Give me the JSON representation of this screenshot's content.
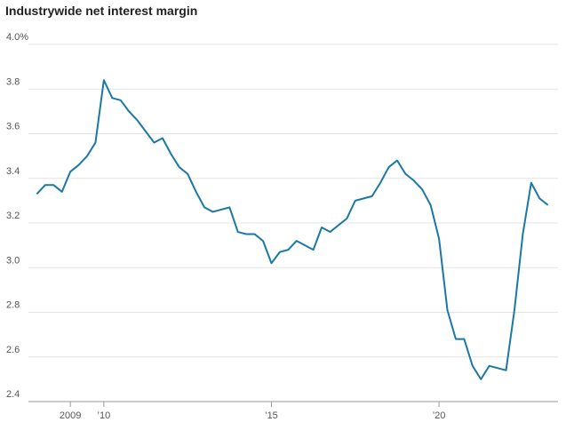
{
  "chart_data": {
    "type": "line",
    "title": "Industrywide net interest margin",
    "x": [
      2008,
      2008.25,
      2008.5,
      2008.75,
      2009,
      2009.25,
      2009.5,
      2009.75,
      2010,
      2010.25,
      2010.5,
      2010.75,
      2011,
      2011.25,
      2011.5,
      2011.75,
      2012,
      2012.25,
      2012.5,
      2012.75,
      2013,
      2013.25,
      2013.5,
      2013.75,
      2014,
      2014.25,
      2014.5,
      2014.75,
      2015,
      2015.25,
      2015.5,
      2015.75,
      2016,
      2016.25,
      2016.5,
      2016.75,
      2017,
      2017.25,
      2017.5,
      2017.75,
      2018,
      2018.25,
      2018.5,
      2018.75,
      2019,
      2019.25,
      2019.5,
      2019.75,
      2020,
      2020.25,
      2020.5,
      2020.75,
      2021,
      2021.25,
      2021.5,
      2021.75,
      2022,
      2022.25,
      2022.5,
      2022.75,
      2023,
      2023.25
    ],
    "series": [
      {
        "color": "#1b78a6",
        "values": [
          3.33,
          3.37,
          3.37,
          3.34,
          3.43,
          3.46,
          3.5,
          3.56,
          3.84,
          3.76,
          3.75,
          3.7,
          3.66,
          3.61,
          3.56,
          3.58,
          3.51,
          3.45,
          3.42,
          3.34,
          3.27,
          3.25,
          3.26,
          3.27,
          3.16,
          3.15,
          3.15,
          3.12,
          3.02,
          3.07,
          3.08,
          3.12,
          3.1,
          3.08,
          3.18,
          3.16,
          3.19,
          3.22,
          3.3,
          3.31,
          3.32,
          3.38,
          3.45,
          3.48,
          3.42,
          3.39,
          3.35,
          3.28,
          3.13,
          2.81,
          2.68,
          2.68,
          2.56,
          2.5,
          2.56,
          2.55,
          2.54,
          2.81,
          3.15,
          3.38,
          3.31,
          3.28
        ]
      }
    ],
    "xlim": [
      2007.75,
      2023.55
    ],
    "xticks": [
      2009,
      {
        "value": 2010,
        "label": "’10"
      },
      {
        "value": 2015,
        "label": "’15"
      },
      {
        "value": 2020,
        "label": "’20"
      }
    ],
    "ylim": [
      2.4,
      4.0
    ],
    "yticks": [
      {
        "value": 2.4,
        "label": "2.4"
      },
      2.6,
      2.8,
      {
        "value": 3.0,
        "label": "3.0"
      },
      3.2,
      3.4,
      3.6,
      3.8,
      {
        "value": 4.0,
        "label": "4.0%"
      }
    ],
    "grid": true
  }
}
